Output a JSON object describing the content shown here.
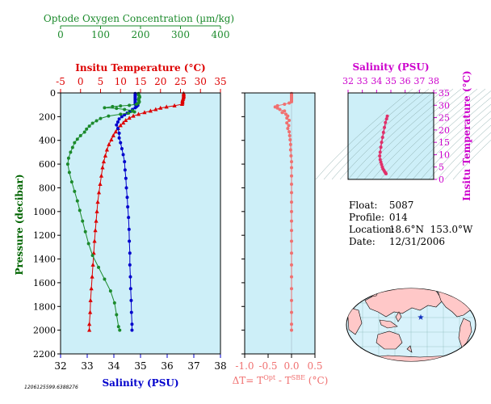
{
  "colors": {
    "oxygen": "#1b8a2b",
    "temperature": "#dd0000",
    "salinity": "#0000cc",
    "delta_t": "#f07070",
    "ts_axis": "#cc00cc",
    "panel_bg": "#cdeff8"
  },
  "info": {
    "float_label": "Float:",
    "float_value": "5087",
    "profile_label": "Profile:",
    "profile_value": "014",
    "location_label": "Location:",
    "location_value": "18.6°N  153.0°W",
    "date_label": "Date:",
    "date_value": "12/31/2006"
  },
  "stamp": "1206125599.6388276",
  "chart_data": [
    {
      "type": "line",
      "panel": "profile",
      "ylabel": "Pressure (decibar)",
      "ylim": [
        2200,
        0
      ],
      "yticks": [
        "0",
        "200",
        "400",
        "600",
        "800",
        "1000",
        "1200",
        "1400",
        "1600",
        "1800",
        "2000",
        "2200"
      ],
      "axes": {
        "oxygen": {
          "label": "Optode Oxygen Concentration (µm/kg)",
          "lim": [
            0,
            400
          ],
          "ticks": [
            "0",
            "100",
            "200",
            "300",
            "400"
          ]
        },
        "temperature": {
          "label": "Insitu Temperature (°C)",
          "lim": [
            -5,
            35
          ],
          "ticks": [
            "-5",
            "0",
            "5",
            "10",
            "15",
            "20",
            "25",
            "30",
            "35"
          ]
        },
        "salinity": {
          "label": "Salinity (PSU)",
          "lim": [
            32,
            38
          ],
          "ticks": [
            "32",
            "33",
            "34",
            "35",
            "36",
            "37",
            "38"
          ]
        }
      },
      "series": [
        {
          "key": "temperature",
          "marker": "triangle",
          "points": [
            [
              25.8,
              5
            ],
            [
              25.8,
              15
            ],
            [
              25.8,
              25
            ],
            [
              25.8,
              35
            ],
            [
              25.7,
              45
            ],
            [
              25.6,
              55
            ],
            [
              25.5,
              65
            ],
            [
              25.5,
              75
            ],
            [
              25.5,
              85
            ],
            [
              25.4,
              95
            ],
            [
              23.5,
              108
            ],
            [
              21.5,
              118
            ],
            [
              20,
              128
            ],
            [
              18.8,
              140
            ],
            [
              17.5,
              152
            ],
            [
              16,
              165
            ],
            [
              14.5,
              180
            ],
            [
              13.2,
              195
            ],
            [
              12.2,
              212
            ],
            [
              11.3,
              232
            ],
            [
              10.7,
              253
            ],
            [
              10,
              275
            ],
            [
              9.4,
              300
            ],
            [
              8.8,
              328
            ],
            [
              8.2,
              360
            ],
            [
              7.7,
              395
            ],
            [
              7.1,
              435
            ],
            [
              6.6,
              480
            ],
            [
              6.2,
              530
            ],
            [
              5.8,
              580
            ],
            [
              5.5,
              630
            ],
            [
              5.2,
              700
            ],
            [
              4.9,
              770
            ],
            [
              4.6,
              840
            ],
            [
              4.3,
              920
            ],
            [
              4.1,
              1000
            ],
            [
              3.9,
              1080
            ],
            [
              3.7,
              1160
            ],
            [
              3.5,
              1250
            ],
            [
              3.3,
              1350
            ],
            [
              3.1,
              1450
            ],
            [
              2.9,
              1550
            ],
            [
              2.7,
              1650
            ],
            [
              2.5,
              1750
            ],
            [
              2.4,
              1850
            ],
            [
              2.2,
              1950
            ],
            [
              2.2,
              2000
            ]
          ]
        },
        {
          "key": "salinity",
          "marker": "circle",
          "points": [
            [
              34.8,
              5
            ],
            [
              34.8,
              15
            ],
            [
              34.8,
              25
            ],
            [
              34.8,
              35
            ],
            [
              34.8,
              45
            ],
            [
              34.8,
              55
            ],
            [
              34.8,
              65
            ],
            [
              34.8,
              75
            ],
            [
              34.8,
              85
            ],
            [
              34.8,
              95
            ],
            [
              34.9,
              105
            ],
            [
              34.85,
              115
            ],
            [
              34.8,
              125
            ],
            [
              34.7,
              140
            ],
            [
              34.6,
              155
            ],
            [
              34.5,
              170
            ],
            [
              34.4,
              185
            ],
            [
              34.3,
              200
            ],
            [
              34.2,
              220
            ],
            [
              34.15,
              245
            ],
            [
              34.1,
              270
            ],
            [
              34.15,
              300
            ],
            [
              34.2,
              340
            ],
            [
              34.2,
              380
            ],
            [
              34.25,
              420
            ],
            [
              34.3,
              470
            ],
            [
              34.35,
              520
            ],
            [
              34.4,
              580
            ],
            [
              34.42,
              650
            ],
            [
              34.45,
              720
            ],
            [
              34.47,
              800
            ],
            [
              34.5,
              880
            ],
            [
              34.52,
              960
            ],
            [
              34.55,
              1050
            ],
            [
              34.57,
              1150
            ],
            [
              34.58,
              1250
            ],
            [
              34.6,
              1350
            ],
            [
              34.6,
              1450
            ],
            [
              34.62,
              1550
            ],
            [
              34.63,
              1650
            ],
            [
              34.65,
              1750
            ],
            [
              34.66,
              1850
            ],
            [
              34.68,
              1950
            ],
            [
              34.68,
              2000
            ]
          ]
        },
        {
          "key": "oxygen",
          "marker": "circle",
          "points": [
            [
              195,
              5
            ],
            [
              195,
              15
            ],
            [
              197,
              25
            ],
            [
              198,
              35
            ],
            [
              196,
              45
            ],
            [
              195,
              55
            ],
            [
              196,
              65
            ],
            [
              197,
              75
            ],
            [
              195,
              85
            ],
            [
              190,
              95
            ],
            [
              172,
              105
            ],
            [
              150,
              110
            ],
            [
              130,
              115
            ],
            [
              110,
              125
            ],
            [
              140,
              130
            ],
            [
              160,
              140
            ],
            [
              180,
              150
            ],
            [
              185,
              160
            ],
            [
              170,
              170
            ],
            [
              150,
              180
            ],
            [
              120,
              195
            ],
            [
              100,
              215
            ],
            [
              90,
              235
            ],
            [
              80,
              255
            ],
            [
              72,
              280
            ],
            [
              65,
              305
            ],
            [
              60,
              330
            ],
            [
              50,
              360
            ],
            [
              42,
              390
            ],
            [
              35,
              420
            ],
            [
              30,
              460
            ],
            [
              25,
              500
            ],
            [
              20,
              550
            ],
            [
              18,
              600
            ],
            [
              22,
              670
            ],
            [
              28,
              750
            ],
            [
              35,
              830
            ],
            [
              42,
              910
            ],
            [
              48,
              990
            ],
            [
              55,
              1080
            ],
            [
              62,
              1170
            ],
            [
              70,
              1270
            ],
            [
              80,
              1370
            ],
            [
              95,
              1470
            ],
            [
              110,
              1570
            ],
            [
              125,
              1670
            ],
            [
              135,
              1770
            ],
            [
              140,
              1870
            ],
            [
              145,
              1970
            ],
            [
              148,
              2000
            ]
          ]
        }
      ]
    },
    {
      "type": "scatter",
      "panel": "delta_t",
      "xlabel": "ΔT= T^Opt - T^SBE (°C)",
      "xlim": [
        -1.0,
        0.5
      ],
      "xticks": [
        "-1.0",
        "-0.5",
        "0.0",
        "0.5"
      ],
      "ylim": [
        2200,
        0
      ],
      "points": [
        [
          0,
          5
        ],
        [
          0,
          15
        ],
        [
          0,
          25
        ],
        [
          0,
          35
        ],
        [
          0,
          45
        ],
        [
          0,
          55
        ],
        [
          0,
          65
        ],
        [
          0,
          75
        ],
        [
          -0.05,
          85
        ],
        [
          -0.15,
          95
        ],
        [
          -0.3,
          108
        ],
        [
          -0.35,
          118
        ],
        [
          -0.3,
          128
        ],
        [
          -0.25,
          140
        ],
        [
          -0.15,
          152
        ],
        [
          -0.2,
          165
        ],
        [
          -0.12,
          180
        ],
        [
          -0.08,
          195
        ],
        [
          -0.1,
          212
        ],
        [
          -0.05,
          232
        ],
        [
          -0.1,
          253
        ],
        [
          -0.06,
          275
        ],
        [
          -0.08,
          300
        ],
        [
          -0.05,
          328
        ],
        [
          -0.04,
          360
        ],
        [
          -0.03,
          395
        ],
        [
          -0.02,
          435
        ],
        [
          -0.02,
          480
        ],
        [
          -0.01,
          530
        ],
        [
          0,
          580
        ],
        [
          0,
          630
        ],
        [
          0,
          700
        ],
        [
          0,
          770
        ],
        [
          0,
          840
        ],
        [
          0,
          920
        ],
        [
          0,
          1000
        ],
        [
          0,
          1080
        ],
        [
          0,
          1160
        ],
        [
          0,
          1250
        ],
        [
          0,
          1350
        ],
        [
          0,
          1450
        ],
        [
          0,
          1550
        ],
        [
          0,
          1650
        ],
        [
          0,
          1750
        ],
        [
          0,
          1850
        ],
        [
          0,
          1950
        ],
        [
          0,
          2000
        ]
      ]
    },
    {
      "type": "line",
      "panel": "ts",
      "xlabel": "Salinity (PSU)",
      "ylabel": "Insitu Temperature (°C)",
      "xlim": [
        32,
        38
      ],
      "ylim": [
        0,
        35
      ],
      "xticks": [
        "32",
        "33",
        "34",
        "35",
        "36",
        "37",
        "38"
      ],
      "yticks": [
        "0",
        "5",
        "10",
        "15",
        "20",
        "25",
        "30",
        "35"
      ],
      "points": [
        [
          34.75,
          25.6
        ],
        [
          34.7,
          24.5
        ],
        [
          34.62,
          23
        ],
        [
          34.55,
          21
        ],
        [
          34.48,
          19
        ],
        [
          34.42,
          17
        ],
        [
          34.35,
          15
        ],
        [
          34.3,
          13
        ],
        [
          34.25,
          11
        ],
        [
          34.22,
          9.5
        ],
        [
          34.25,
          8
        ],
        [
          34.3,
          7
        ],
        [
          34.35,
          6
        ],
        [
          34.4,
          5
        ],
        [
          34.45,
          4.2
        ],
        [
          34.52,
          3.6
        ],
        [
          34.58,
          3.0
        ],
        [
          34.63,
          2.6
        ],
        [
          34.66,
          2.3
        ]
      ]
    },
    {
      "type": "map",
      "panel": "location",
      "lat": 18.6,
      "lon": -153.0
    }
  ]
}
